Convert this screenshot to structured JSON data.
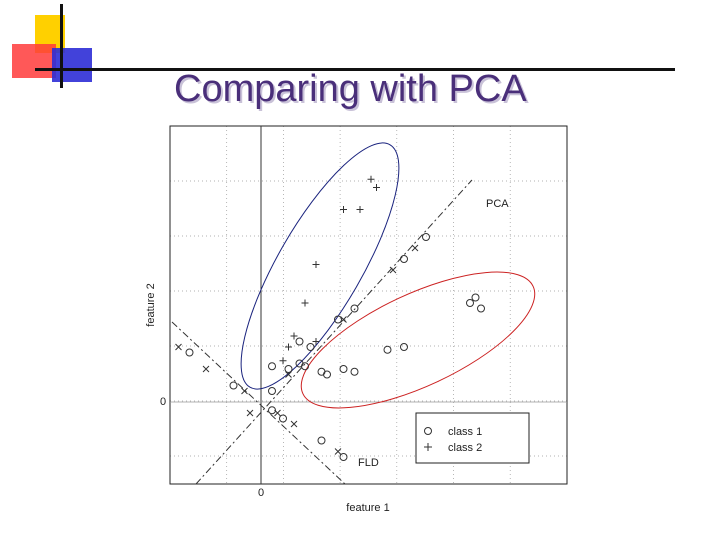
{
  "slide": {
    "title": "Comparing with PCA"
  },
  "colors": {
    "title": "#4a2f7a",
    "class1_ellipse": "#cc2222",
    "class2_ellipse": "#1a237e",
    "marker": "#333333"
  },
  "chart_data": {
    "type": "scatter",
    "title": "",
    "xlabel": "feature 1",
    "ylabel": "feature 2",
    "x_ticks": [
      "0"
    ],
    "y_ticks": [
      "0"
    ],
    "xlim": [
      -1.6,
      4.5
    ],
    "ylim": [
      -1.5,
      5.0
    ],
    "grid": true,
    "legend_position": "bottom-right",
    "series": [
      {
        "name": "class 1",
        "marker": "o",
        "points": [
          [
            0.2,
            0.65
          ],
          [
            0.5,
            0.6
          ],
          [
            0.8,
            0.65
          ],
          [
            1.1,
            0.55
          ],
          [
            1.2,
            0.5
          ],
          [
            1.5,
            0.6
          ],
          [
            1.7,
            0.55
          ],
          [
            2.3,
            0.95
          ],
          [
            2.6,
            1.0
          ],
          [
            3.8,
            1.8
          ],
          [
            4.0,
            1.7
          ],
          [
            3.9,
            1.9
          ],
          [
            1.4,
            1.5
          ],
          [
            0.9,
            1.0
          ],
          [
            0.7,
            1.1
          ]
        ]
      },
      {
        "name": "class 2",
        "marker": "+",
        "points": [
          [
            2.0,
            4.05
          ],
          [
            2.1,
            3.9
          ],
          [
            1.8,
            3.5
          ],
          [
            1.5,
            3.5
          ],
          [
            1.0,
            2.5
          ],
          [
            0.8,
            1.8
          ],
          [
            0.5,
            1.0
          ],
          [
            0.4,
            0.75
          ],
          [
            0.6,
            1.2
          ],
          [
            1.0,
            1.1
          ]
        ]
      }
    ],
    "projections": [
      {
        "name": "PCA",
        "direction": "diagonal",
        "points": [
          [
            -0.2,
            -0.2
          ],
          [
            0.2,
            0.2
          ],
          [
            0.5,
            0.5
          ],
          [
            0.7,
            0.7
          ],
          [
            1.5,
            1.5
          ],
          [
            1.7,
            1.7
          ],
          [
            2.4,
            2.4
          ],
          [
            2.6,
            2.6
          ],
          [
            2.8,
            2.8
          ],
          [
            3.0,
            3.0
          ]
        ]
      },
      {
        "name": "FLD",
        "direction": "anti-diagonal",
        "points": [
          [
            -1.5,
            1.0
          ],
          [
            -1.3,
            0.9
          ],
          [
            -1.0,
            0.6
          ],
          [
            -0.5,
            0.3
          ],
          [
            -0.3,
            0.2
          ],
          [
            0.2,
            -0.15
          ],
          [
            0.3,
            -0.2
          ],
          [
            0.4,
            -0.3
          ],
          [
            0.6,
            -0.4
          ],
          [
            1.1,
            -0.7
          ],
          [
            1.4,
            -0.9
          ],
          [
            1.5,
            -1.0
          ]
        ]
      }
    ],
    "annotations": [
      {
        "text": "PCA"
      },
      {
        "text": "FLD"
      }
    ]
  }
}
